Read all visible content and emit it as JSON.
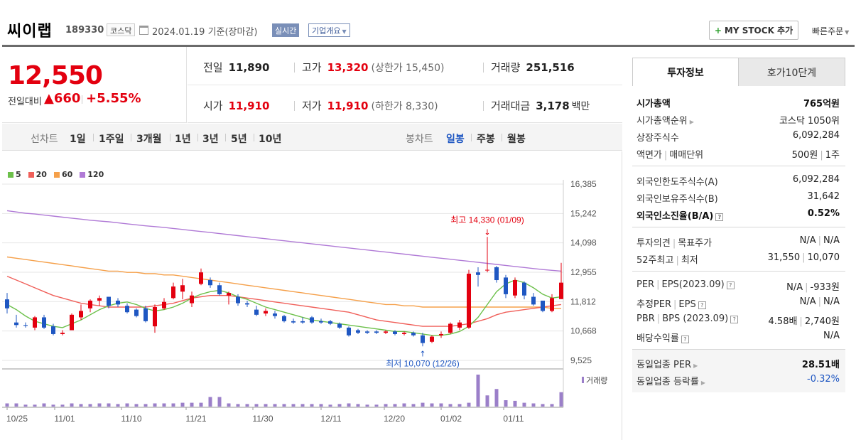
{
  "header": {
    "stock_name": "씨이랩",
    "stock_code": "189330",
    "market": "코스닥",
    "base_date": "2024.01.19  기준(장마감)",
    "realtime_label": "실시간",
    "overview_label": "기업개요",
    "mystock_label": "MY STOCK 추가",
    "quick_order_label": "빠른주문"
  },
  "price": {
    "current": "12,550",
    "change_label": "전일대비",
    "change": "660",
    "change_pct": "+5.55%",
    "direction": "up"
  },
  "quotes": {
    "prev_label": "전일",
    "prev": "11,890",
    "high_label": "고가",
    "high": "13,320",
    "upper_limit": "(상한가 15,450)",
    "volume_label": "거래량",
    "volume": "251,516",
    "open_label": "시가",
    "open": "11,910",
    "low_label": "저가",
    "low": "11,910",
    "lower_limit": "(하한가 8,330)",
    "amount_label": "거래대금",
    "amount": "3,178",
    "amount_unit": "백만"
  },
  "period_bar": {
    "line_label": "선차트",
    "line_items": [
      "1일",
      "1주일",
      "3개월",
      "1년",
      "3년",
      "5년",
      "10년"
    ],
    "candle_label": "봉차트",
    "candle_items": [
      "일봉",
      "주봉",
      "월봉"
    ],
    "active_candle": "일봉"
  },
  "colors": {
    "up": "#e3000f",
    "down": "#1f57c2",
    "ma5": "#6cc04a",
    "ma20": "#f0605a",
    "ma60": "#f5a04a",
    "ma120": "#b07ad6",
    "volume": "#9b7fc9"
  },
  "chart_data": {
    "type": "candlestick",
    "legend": [
      "5",
      "20",
      "60",
      "120"
    ],
    "y_ticks": [
      "16,385",
      "15,242",
      "14,098",
      "12,955",
      "11,812",
      "10,668",
      "9,525"
    ],
    "y_range": [
      9525,
      16385
    ],
    "x_ticks": [
      "10/25",
      "11/01",
      "11/10",
      "11/21",
      "11/30",
      "12/11",
      "12/20",
      "01/02",
      "01/11"
    ],
    "volume_label": "거래량",
    "high_annotation": "최고 14,330 (01/09)",
    "low_annotation": "최저 10,070 (12/26)",
    "candles": [
      {
        "o": 11900,
        "h": 12150,
        "l": 11350,
        "c": 11550
      },
      {
        "o": 11000,
        "h": 11300,
        "l": 10800,
        "c": 10900
      },
      {
        "o": 10900,
        "h": 11000,
        "l": 10800,
        "c": 10870
      },
      {
        "o": 10800,
        "h": 11250,
        "l": 10700,
        "c": 11200
      },
      {
        "o": 11200,
        "h": 11300,
        "l": 10750,
        "c": 10800
      },
      {
        "o": 10850,
        "h": 10950,
        "l": 10500,
        "c": 10550
      },
      {
        "o": 10550,
        "h": 10700,
        "l": 10500,
        "c": 10600
      },
      {
        "o": 10700,
        "h": 11350,
        "l": 10700,
        "c": 11300
      },
      {
        "o": 11200,
        "h": 11700,
        "l": 11100,
        "c": 11450
      },
      {
        "o": 11550,
        "h": 11900,
        "l": 11400,
        "c": 11850
      },
      {
        "o": 11850,
        "h": 12050,
        "l": 11650,
        "c": 11950
      },
      {
        "o": 12000,
        "h": 12000,
        "l": 11550,
        "c": 11650
      },
      {
        "o": 11850,
        "h": 11950,
        "l": 11600,
        "c": 11700
      },
      {
        "o": 11650,
        "h": 11750,
        "l": 11350,
        "c": 11400
      },
      {
        "o": 11500,
        "h": 11550,
        "l": 11200,
        "c": 11250
      },
      {
        "o": 11550,
        "h": 11650,
        "l": 11000,
        "c": 11050
      },
      {
        "o": 10850,
        "h": 11700,
        "l": 10600,
        "c": 11600
      },
      {
        "o": 11550,
        "h": 11950,
        "l": 11500,
        "c": 11800
      },
      {
        "o": 11950,
        "h": 12550,
        "l": 11900,
        "c": 12400
      },
      {
        "o": 12200,
        "h": 12700,
        "l": 11900,
        "c": 12450
      },
      {
        "o": 11750,
        "h": 12200,
        "l": 11600,
        "c": 12050
      },
      {
        "o": 12500,
        "h": 13100,
        "l": 12450,
        "c": 12950
      },
      {
        "o": 12650,
        "h": 12750,
        "l": 12350,
        "c": 12450
      },
      {
        "o": 12450,
        "h": 12550,
        "l": 12050,
        "c": 12100
      },
      {
        "o": 12050,
        "h": 12200,
        "l": 11700,
        "c": 12150
      },
      {
        "o": 12000,
        "h": 12100,
        "l": 11650,
        "c": 11750
      },
      {
        "o": 11750,
        "h": 11850,
        "l": 11600,
        "c": 11700
      },
      {
        "o": 11500,
        "h": 11650,
        "l": 11250,
        "c": 11300
      },
      {
        "o": 11350,
        "h": 11550,
        "l": 11250,
        "c": 11450
      },
      {
        "o": 11350,
        "h": 11450,
        "l": 11150,
        "c": 11250
      },
      {
        "o": 11250,
        "h": 11300,
        "l": 11000,
        "c": 11050
      },
      {
        "o": 11050,
        "h": 11150,
        "l": 10950,
        "c": 11000
      },
      {
        "o": 11050,
        "h": 11200,
        "l": 10950,
        "c": 11000
      },
      {
        "o": 11200,
        "h": 11250,
        "l": 10950,
        "c": 11000
      },
      {
        "o": 11050,
        "h": 11150,
        "l": 10950,
        "c": 11000
      },
      {
        "o": 11050,
        "h": 11100,
        "l": 10900,
        "c": 10950
      },
      {
        "o": 10950,
        "h": 11000,
        "l": 10750,
        "c": 10800
      },
      {
        "o": 10800,
        "h": 10850,
        "l": 10450,
        "c": 10500
      },
      {
        "o": 10700,
        "h": 10750,
        "l": 10550,
        "c": 10600
      },
      {
        "o": 10650,
        "h": 10700,
        "l": 10550,
        "c": 10600
      },
      {
        "o": 10650,
        "h": 10700,
        "l": 10550,
        "c": 10600
      },
      {
        "o": 10600,
        "h": 10700,
        "l": 10550,
        "c": 10650
      },
      {
        "o": 10650,
        "h": 10700,
        "l": 10500,
        "c": 10550
      },
      {
        "o": 10550,
        "h": 10650,
        "l": 10500,
        "c": 10600
      },
      {
        "o": 10600,
        "h": 10650,
        "l": 10450,
        "c": 10500
      },
      {
        "o": 10500,
        "h": 10600,
        "l": 10070,
        "c": 10200
      },
      {
        "o": 10250,
        "h": 10500,
        "l": 10200,
        "c": 10450
      },
      {
        "o": 10500,
        "h": 10650,
        "l": 10400,
        "c": 10550
      },
      {
        "o": 10600,
        "h": 11000,
        "l": 10550,
        "c": 10950
      },
      {
        "o": 10800,
        "h": 11100,
        "l": 10700,
        "c": 11000
      },
      {
        "o": 10800,
        "h": 13050,
        "l": 10750,
        "c": 12900
      },
      {
        "o": 12950,
        "h": 13150,
        "l": 12400,
        "c": 12850
      },
      {
        "o": 13050,
        "h": 14330,
        "l": 12950,
        "c": 13050
      },
      {
        "o": 13150,
        "h": 13200,
        "l": 12550,
        "c": 12650
      },
      {
        "o": 12750,
        "h": 12850,
        "l": 11950,
        "c": 12100
      },
      {
        "o": 12050,
        "h": 12750,
        "l": 11950,
        "c": 12650
      },
      {
        "o": 12550,
        "h": 12600,
        "l": 11900,
        "c": 12050
      },
      {
        "o": 12000,
        "h": 12150,
        "l": 11650,
        "c": 11700
      },
      {
        "o": 11850,
        "h": 11850,
        "l": 11400,
        "c": 11450
      },
      {
        "o": 11450,
        "h": 12100,
        "l": 11400,
        "c": 11950
      },
      {
        "o": 11910,
        "h": 13320,
        "l": 11910,
        "c": 12550
      }
    ],
    "ma5": [
      11700,
      11500,
      11250,
      11050,
      10950,
      10850,
      10800,
      10950,
      11100,
      11300,
      11500,
      11650,
      11750,
      11800,
      11700,
      11550,
      11450,
      11500,
      11600,
      11750,
      11950,
      12100,
      12200,
      12250,
      12150,
      12000,
      11900,
      11750,
      11600,
      11500,
      11400,
      11300,
      11200,
      11100,
      11050,
      11000,
      10950,
      10900,
      10850,
      10800,
      10750,
      10700,
      10650,
      10650,
      10600,
      10550,
      10500,
      10500,
      10550,
      10650,
      10850,
      11200,
      11700,
      12200,
      12500,
      12650,
      12550,
      12350,
      12100,
      11950,
      12000
    ],
    "ma20": [
      12800,
      12650,
      12500,
      12350,
      12200,
      12050,
      11950,
      11850,
      11750,
      11700,
      11650,
      11600,
      11600,
      11600,
      11600,
      11600,
      11650,
      11700,
      11750,
      11850,
      11950,
      12000,
      12050,
      12050,
      12050,
      12000,
      11950,
      11900,
      11850,
      11800,
      11750,
      11700,
      11650,
      11600,
      11550,
      11500,
      11450,
      11400,
      11300,
      11200,
      11100,
      11050,
      11000,
      10950,
      10900,
      10850,
      10850,
      10850,
      10850,
      10900,
      10950,
      11050,
      11150,
      11300,
      11400,
      11450,
      11500,
      11550,
      11600,
      11650,
      11700
    ],
    "ma60": [
      13550,
      13500,
      13450,
      13400,
      13350,
      13300,
      13250,
      13200,
      13150,
      13100,
      13050,
      13000,
      13000,
      12950,
      12950,
      12900,
      12900,
      12850,
      12850,
      12800,
      12750,
      12700,
      12650,
      12600,
      12550,
      12500,
      12450,
      12400,
      12350,
      12300,
      12250,
      12200,
      12150,
      12100,
      12050,
      12000,
      11950,
      11900,
      11850,
      11800,
      11750,
      11700,
      11700,
      11650,
      11650,
      11600,
      11600,
      11600,
      11600,
      11600,
      11600,
      11600,
      11600,
      11600,
      11600,
      11600,
      11600,
      11600,
      11600,
      11550,
      11550
    ],
    "ma120": [
      15350,
      15300,
      15250,
      15220,
      15180,
      15140,
      15100,
      15060,
      15020,
      14980,
      14950,
      14920,
      14880,
      14840,
      14800,
      14760,
      14730,
      14700,
      14660,
      14620,
      14580,
      14540,
      14500,
      14460,
      14420,
      14380,
      14340,
      14300,
      14260,
      14220,
      14180,
      14140,
      14100,
      14060,
      14020,
      13980,
      13940,
      13900,
      13860,
      13820,
      13780,
      13740,
      13700,
      13660,
      13620,
      13580,
      13540,
      13500,
      13460,
      13420,
      13380,
      13340,
      13300,
      13260,
      13220,
      13180,
      13140,
      13100,
      13060,
      13030,
      13000
    ],
    "volumes": [
      10,
      10,
      6,
      6,
      10,
      6,
      6,
      10,
      8,
      8,
      10,
      10,
      8,
      10,
      8,
      8,
      10,
      10,
      10,
      12,
      12,
      12,
      30,
      30,
      10,
      8,
      8,
      8,
      8,
      8,
      8,
      8,
      8,
      8,
      8,
      6,
      8,
      10,
      8,
      6,
      6,
      8,
      8,
      10,
      8,
      12,
      10,
      10,
      8,
      8,
      12,
      100,
      35,
      55,
      20,
      18,
      12,
      10,
      8,
      8,
      45
    ]
  },
  "right_panel": {
    "tab_invest": "투자정보",
    "tab_orderbook": "호가10단계",
    "market_cap_label": "시가총액",
    "market_cap": "765억원",
    "market_cap_rank_label": "시가총액순위",
    "market_cap_rank": "코스닥 1050위",
    "shares_label": "상장주식수",
    "shares": "6,092,284",
    "par_label": "액면가",
    "trade_unit_label": "매매단위",
    "par": "500원",
    "trade_unit": "1주",
    "foreign_limit_label": "외국인한도주식수(A)",
    "foreign_limit": "6,092,284",
    "foreign_hold_label": "외국인보유주식수(B)",
    "foreign_hold": "31,642",
    "foreign_ratio_label": "외국인소진율(B/A)",
    "foreign_ratio": "0.52%",
    "opinion_label": "투자의견",
    "target_label": "목표주가",
    "opinion": "N/A",
    "target": "N/A",
    "w52_high_label": "52주최고",
    "w52_low_label": "최저",
    "w52_high": "31,550",
    "w52_low": "10,070",
    "per_label": "PER",
    "eps_label": "EPS(2023.09)",
    "per": "N/A",
    "eps": "-933원",
    "est_per_label": "추정PER",
    "est_eps_label": "EPS",
    "est_per": "N/A",
    "est_eps": "N/A",
    "pbr_label": "PBR",
    "bps_label": "BPS (2023.09)",
    "pbr": "4.58배",
    "bps": "2,740원",
    "dividend_label": "배당수익률",
    "dividend": "N/A",
    "sector_per_label": "동일업종 PER",
    "sector_per": "28.51배",
    "sector_change_label": "동일업종 등락률",
    "sector_change": "-0.32%"
  }
}
